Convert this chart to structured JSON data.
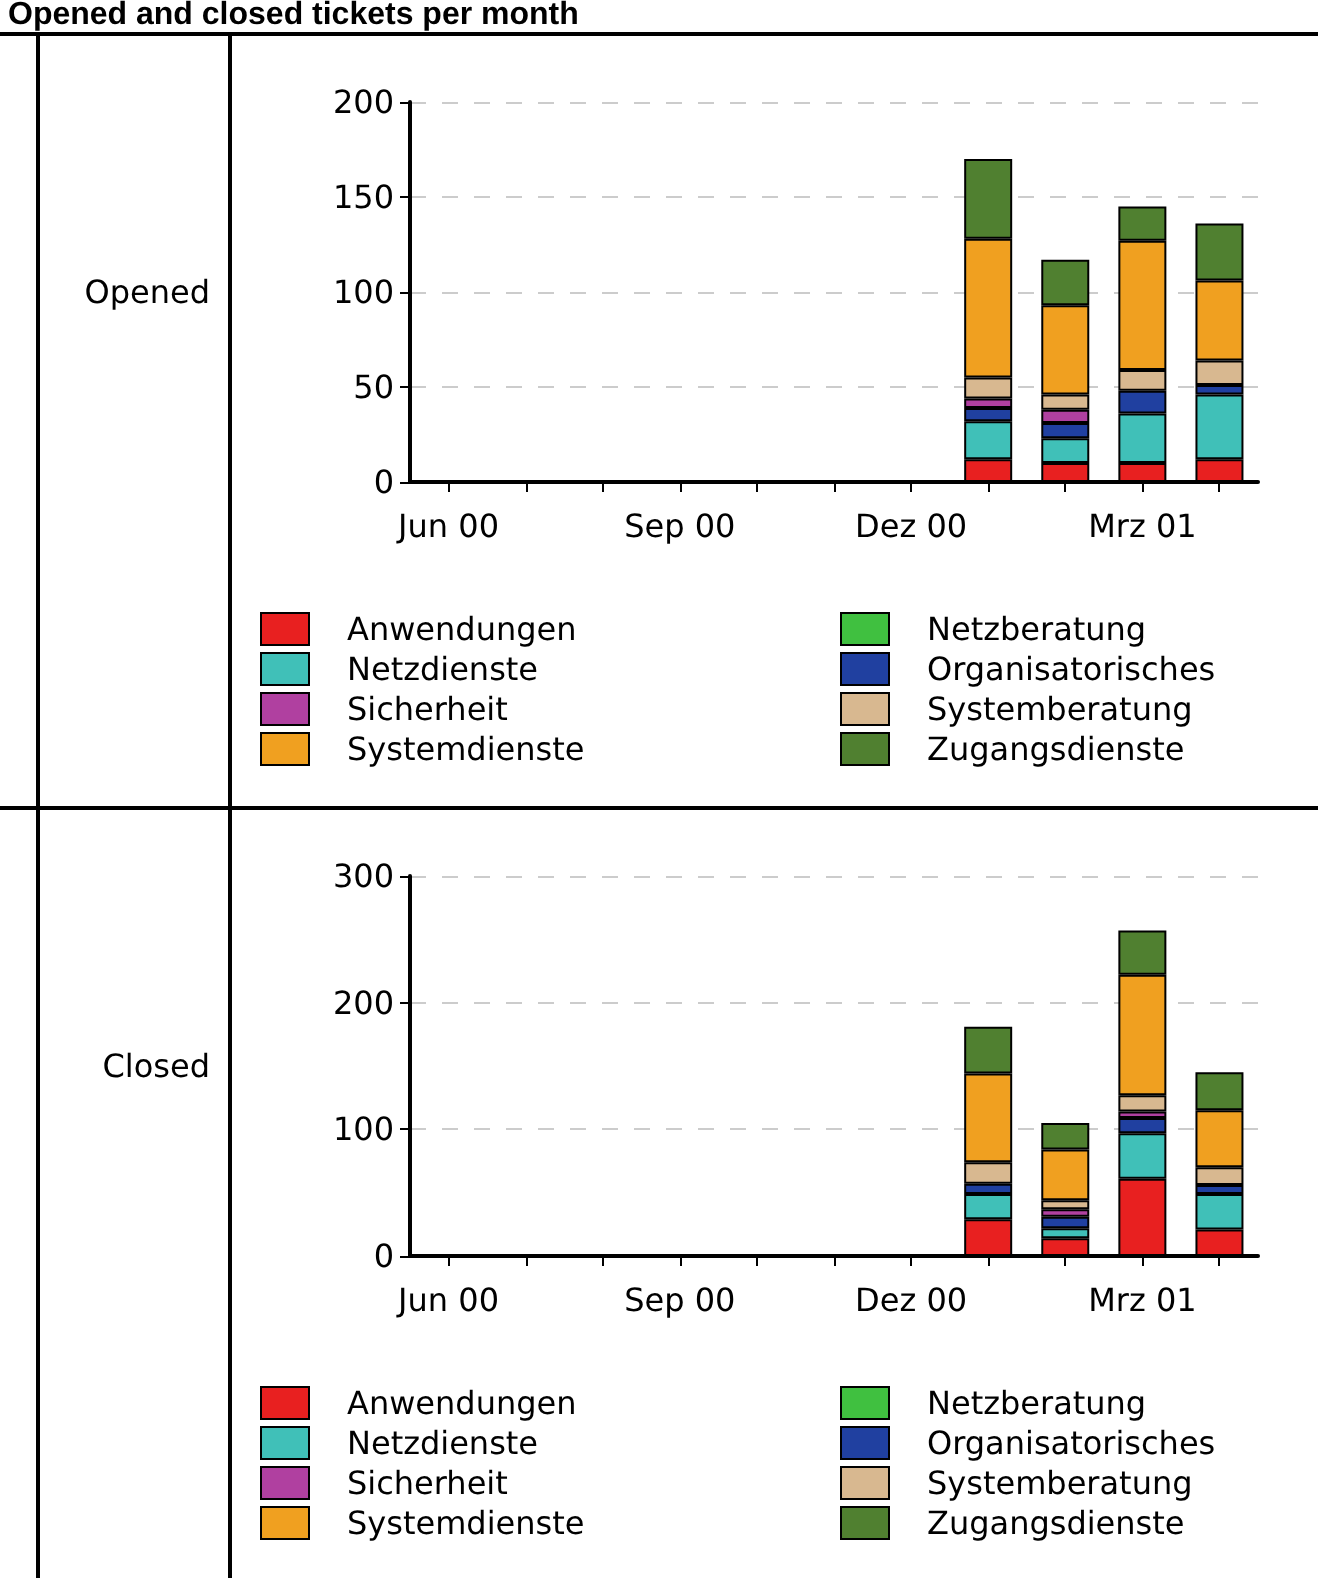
{
  "chart_data": [
    {
      "type": "bar",
      "title": "Opened and closed tickets per month",
      "ylabel": "Opened",
      "stacked": true,
      "grid": "y",
      "legend": "bottom",
      "categories": [
        "Jun 00",
        null,
        null,
        "Sep 00",
        null,
        null,
        "Dez 00",
        null,
        null,
        "Mrz 01",
        null
      ],
      "ylim": [
        0,
        200
      ],
      "yticks": [
        0,
        50,
        100,
        150,
        200
      ],
      "series": [
        {
          "name": "Anwendungen",
          "color": "#e82020",
          "values": [
            null,
            null,
            null,
            null,
            null,
            null,
            null,
            12,
            10,
            10,
            12
          ]
        },
        {
          "name": "Netzberatung",
          "color": "#40c040",
          "values": [
            null,
            null,
            null,
            null,
            null,
            null,
            null,
            0,
            0,
            0,
            0
          ]
        },
        {
          "name": "Netzdienste",
          "color": "#40c0b8",
          "values": [
            null,
            null,
            null,
            null,
            null,
            null,
            null,
            20,
            13,
            26,
            34
          ]
        },
        {
          "name": "Organisatorisches",
          "color": "#2040a0",
          "values": [
            null,
            null,
            null,
            null,
            null,
            null,
            null,
            7,
            8,
            12,
            5
          ]
        },
        {
          "name": "Sicherheit",
          "color": "#b040a0",
          "values": [
            null,
            null,
            null,
            null,
            null,
            null,
            null,
            5,
            7,
            0,
            0
          ]
        },
        {
          "name": "Systemberatung",
          "color": "#d8b890",
          "values": [
            null,
            null,
            null,
            null,
            null,
            null,
            null,
            11,
            8,
            11,
            13
          ]
        },
        {
          "name": "Systemdienste",
          "color": "#f0a020",
          "values": [
            null,
            null,
            null,
            null,
            null,
            null,
            null,
            73,
            47,
            68,
            42
          ]
        },
        {
          "name": "Zugangsdienste",
          "color": "#508030",
          "values": [
            null,
            null,
            null,
            null,
            null,
            null,
            null,
            42,
            24,
            18,
            30
          ]
        }
      ]
    },
    {
      "type": "bar",
      "ylabel": "Closed",
      "stacked": true,
      "grid": "y",
      "legend": "bottom",
      "categories": [
        "Jun 00",
        null,
        null,
        "Sep 00",
        null,
        null,
        "Dez 00",
        null,
        null,
        "Mrz 01",
        null
      ],
      "ylim": [
        0,
        300
      ],
      "yticks": [
        0,
        100,
        200,
        300
      ],
      "series": [
        {
          "name": "Anwendungen",
          "color": "#e82020",
          "values": [
            null,
            null,
            null,
            null,
            null,
            null,
            null,
            29,
            14,
            61,
            21
          ]
        },
        {
          "name": "Netzberatung",
          "color": "#40c040",
          "values": [
            null,
            null,
            null,
            null,
            null,
            null,
            null,
            0,
            0,
            0,
            0
          ]
        },
        {
          "name": "Netzdienste",
          "color": "#40c0b8",
          "values": [
            null,
            null,
            null,
            null,
            null,
            null,
            null,
            20,
            8,
            36,
            28
          ]
        },
        {
          "name": "Organisatorisches",
          "color": "#2040a0",
          "values": [
            null,
            null,
            null,
            null,
            null,
            null,
            null,
            8,
            9,
            12,
            7
          ]
        },
        {
          "name": "Sicherheit",
          "color": "#b040a0",
          "values": [
            null,
            null,
            null,
            null,
            null,
            null,
            null,
            0,
            6,
            5,
            0
          ]
        },
        {
          "name": "Systemberatung",
          "color": "#d8b890",
          "values": [
            null,
            null,
            null,
            null,
            null,
            null,
            null,
            17,
            7,
            13,
            14
          ]
        },
        {
          "name": "Systemdienste",
          "color": "#f0a020",
          "values": [
            null,
            null,
            null,
            null,
            null,
            null,
            null,
            70,
            40,
            95,
            45
          ]
        },
        {
          "name": "Zugangsdienste",
          "color": "#508030",
          "values": [
            null,
            null,
            null,
            null,
            null,
            null,
            null,
            37,
            21,
            35,
            30
          ]
        }
      ]
    }
  ]
}
